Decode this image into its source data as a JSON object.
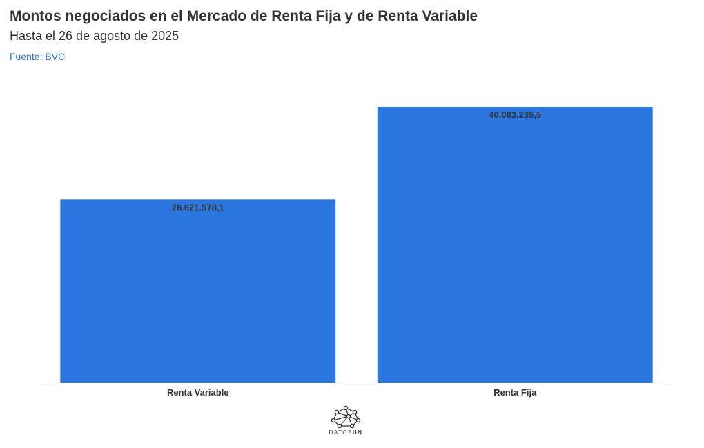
{
  "header": {
    "title": "Montos negociados en el Mercado de Renta Fija y de Renta Variable",
    "subtitle": "Hasta el 26 de agosto de 2025",
    "source": "Fuente: BVC"
  },
  "colors": {
    "bar": "#2b76df",
    "source_link": "#2a6fd6",
    "text": "#333333",
    "axis": "#e6e6e6"
  },
  "chart_data": {
    "type": "bar",
    "categories": [
      "Renta Variable",
      "Renta Fija"
    ],
    "values": [
      26621578.1,
      40083235.5
    ],
    "data_labels": [
      "26.621.578,1",
      "40.083.235,5"
    ],
    "title": "Montos negociados en el Mercado de Renta Fija y de Renta Variable",
    "subtitle": "Hasta el 26 de agosto de 2025",
    "xlabel": "",
    "ylabel": "",
    "ylim": [
      0,
      40083235.5
    ],
    "grid": false,
    "legend": "none"
  },
  "footer": {
    "logo_icon": "network-icon",
    "logo_text_light": "DATOS",
    "logo_text_bold": "UN"
  }
}
